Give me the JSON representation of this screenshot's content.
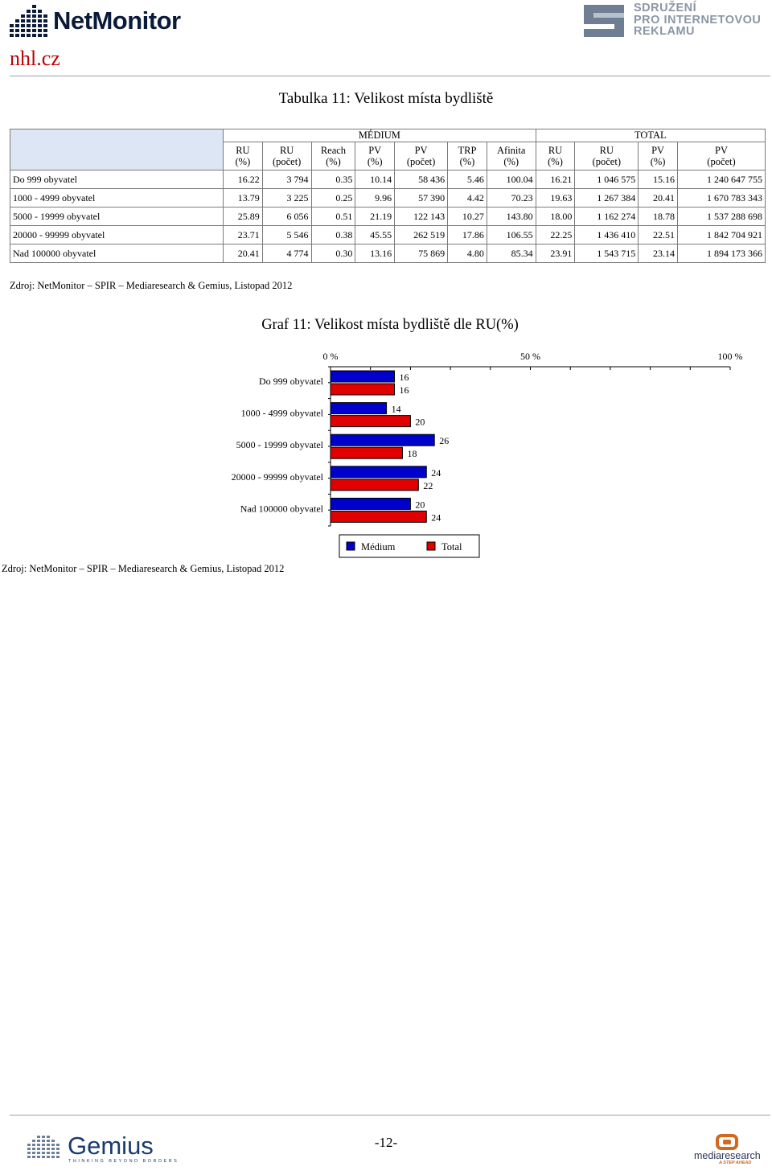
{
  "header": {
    "netmonitor_logo": "NetMonitor",
    "spir_logo": [
      "SDRUŽENÍ",
      "PRO INTERNETOVOU",
      "REKLAMU"
    ],
    "site": "nhl.cz"
  },
  "table": {
    "title": "Tabulka 11: Velikost místa bydliště",
    "group_medium": "MÉDIUM",
    "group_total": "TOTAL",
    "columns": [
      [
        "RU",
        "(%)"
      ],
      [
        "RU",
        "(počet)"
      ],
      [
        "Reach",
        "(%)"
      ],
      [
        "PV",
        "(%)"
      ],
      [
        "PV",
        "(počet)"
      ],
      [
        "TRP",
        "(%)"
      ],
      [
        "Afinita",
        "(%)"
      ],
      [
        "RU",
        "(%)"
      ],
      [
        "RU",
        "(počet)"
      ],
      [
        "PV",
        "(%)"
      ],
      [
        "PV",
        "(počet)"
      ]
    ],
    "rows": [
      {
        "label": "Do 999 obyvatel",
        "cells": [
          "16.22",
          "3 794",
          "0.35",
          "10.14",
          "58 436",
          "5.46",
          "100.04",
          "16.21",
          "1 046 575",
          "15.16",
          "1 240 647 755"
        ]
      },
      {
        "label": "1000 - 4999 obyvatel",
        "cells": [
          "13.79",
          "3 225",
          "0.25",
          "9.96",
          "57 390",
          "4.42",
          "70.23",
          "19.63",
          "1 267 384",
          "20.41",
          "1 670 783 343"
        ]
      },
      {
        "label": "5000 - 19999 obyvatel",
        "cells": [
          "25.89",
          "6 056",
          "0.51",
          "21.19",
          "122 143",
          "10.27",
          "143.80",
          "18.00",
          "1 162 274",
          "18.78",
          "1 537 288 698"
        ]
      },
      {
        "label": "20000 - 99999 obyvatel",
        "cells": [
          "23.71",
          "5 546",
          "0.38",
          "45.55",
          "262 519",
          "17.86",
          "106.55",
          "22.25",
          "1 436 410",
          "22.51",
          "1 842 704 921"
        ]
      },
      {
        "label": "Nad 100000 obyvatel",
        "cells": [
          "20.41",
          "4 774",
          "0.30",
          "13.16",
          "75 869",
          "4.80",
          "85.34",
          "23.91",
          "1 543 715",
          "23.14",
          "1 894 173 366"
        ]
      }
    ]
  },
  "source_1": "Zdroj: NetMonitor – SPIR – Mediaresearch & Gemius, Listopad 2012",
  "chart_data": {
    "type": "bar",
    "orientation": "horizontal",
    "title": "Graf 11: Velikost místa bydliště dle RU(%)",
    "categories": [
      "Do 999 obyvatel",
      "1000 - 4999 obyvatel",
      "5000 - 19999 obyvatel",
      "20000 - 99999 obyvatel",
      "Nad 100000 obyvatel"
    ],
    "series": [
      {
        "name": "Médium",
        "values": [
          16,
          14,
          26,
          24,
          20
        ],
        "color": "#0000cc"
      },
      {
        "name": "Total",
        "values": [
          16,
          20,
          18,
          22,
          24
        ],
        "color": "#e00000"
      }
    ],
    "x_ticks": [
      "0 %",
      "50 %",
      "100 %"
    ],
    "xlim": [
      0,
      100
    ],
    "legend_position": "bottom",
    "grid": false
  },
  "source_2": "Zdroj: NetMonitor – SPIR – Mediaresearch & Gemius, Listopad 2012",
  "footer": {
    "page_number": "-12-",
    "gemius_logo": "Gemius",
    "gemius_tagline": "THINKING BEYOND BORDERS",
    "mediaresearch_logo": "mediaresearch",
    "mediaresearch_tagline": "A STEP AHEAD"
  }
}
